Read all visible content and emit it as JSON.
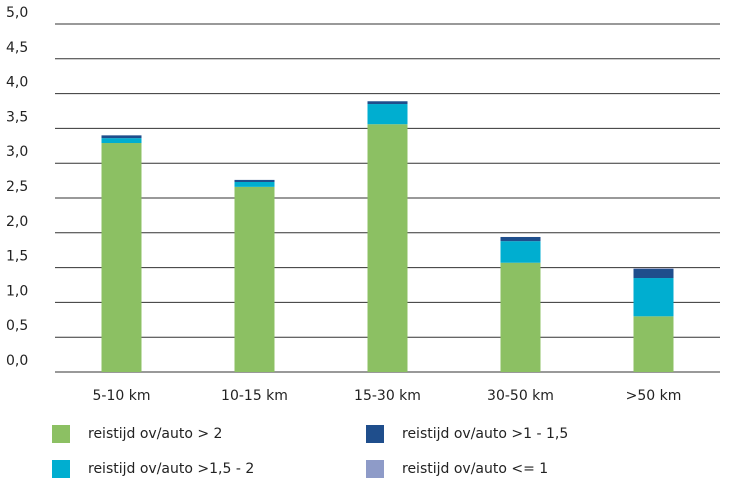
{
  "chart_data": {
    "type": "stacked_bar",
    "categories": [
      "5-10 km",
      "10-15 km",
      "15-30 km",
      "30-50 km",
      ">50 km"
    ],
    "series": [
      {
        "name": "reistijd ov/auto > 2",
        "color": "#8cc063",
        "values": [
          3.29,
          2.66,
          3.56,
          1.57,
          0.8
        ]
      },
      {
        "name": "reistijd ov/auto >1,5 - 2",
        "color": "#00aed0",
        "values": [
          0.07,
          0.07,
          0.29,
          0.31,
          0.55
        ]
      },
      {
        "name": "reistijd ov/auto >1 - 1,5",
        "color": "#1f4e8c",
        "values": [
          0.04,
          0.03,
          0.04,
          0.06,
          0.13
        ]
      },
      {
        "name": "reistijd ov/auto <= 1",
        "color": "#8e9bc8",
        "values": [
          0,
          0,
          0,
          0,
          0.01
        ]
      }
    ],
    "ylim": [
      0,
      5
    ],
    "yticks": [
      {
        "value": 0,
        "label": "0,0"
      },
      {
        "value": 0.5,
        "label": "0,5"
      },
      {
        "value": 1,
        "label": "1,0"
      },
      {
        "value": 1.5,
        "label": "1,5"
      },
      {
        "value": 2,
        "label": "2,0"
      },
      {
        "value": 2.5,
        "label": "2,5"
      },
      {
        "value": 3,
        "label": "3,0"
      },
      {
        "value": 3.5,
        "label": "3,5"
      },
      {
        "value": 4,
        "label": "4,0"
      },
      {
        "value": 4.5,
        "label": "4,5"
      },
      {
        "value": 5,
        "label": "5,0"
      }
    ],
    "grid": true
  }
}
